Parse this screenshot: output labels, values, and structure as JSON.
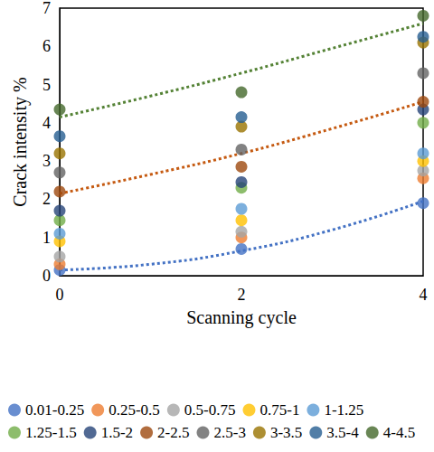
{
  "chart_data": {
    "type": "scatter",
    "x_label": "Scanning cycle",
    "y_label": "Crack intensity %",
    "x": [
      0,
      2,
      4
    ],
    "xlim": [
      0,
      4
    ],
    "xticks": [
      0,
      2,
      4
    ],
    "ylim": [
      0,
      7
    ],
    "yticks": [
      0,
      1,
      2,
      3,
      4,
      5,
      6,
      7
    ],
    "grid": false,
    "legend": "bottom",
    "marker": "circle",
    "series": [
      {
        "name": "0.01-0.25",
        "color": "#4472C4",
        "values": [
          0.15,
          0.7,
          1.9
        ]
      },
      {
        "name": "0.25-0.5",
        "color": "#ED7D31",
        "values": [
          0.3,
          1.0,
          2.55
        ]
      },
      {
        "name": "0.5-0.75",
        "color": "#A5A5A5",
        "values": [
          0.5,
          1.15,
          2.75
        ]
      },
      {
        "name": "0.75-1",
        "color": "#FFC000",
        "values": [
          0.9,
          1.45,
          3.0
        ]
      },
      {
        "name": "1-1.25",
        "color": "#5B9BD5",
        "values": [
          1.1,
          1.75,
          3.2
        ]
      },
      {
        "name": "1.25-1.5",
        "color": "#70AD47",
        "values": [
          1.45,
          2.3,
          4.0
        ]
      },
      {
        "name": "1.5-2",
        "color": "#264478",
        "values": [
          1.7,
          2.45,
          4.35
        ]
      },
      {
        "name": "2-2.5",
        "color": "#9E480E",
        "values": [
          2.2,
          2.85,
          4.55
        ]
      },
      {
        "name": "2.5-3",
        "color": "#636363",
        "values": [
          2.7,
          3.3,
          5.3
        ]
      },
      {
        "name": "3-3.5",
        "color": "#997300",
        "values": [
          3.2,
          3.9,
          6.1
        ]
      },
      {
        "name": "3.5-4",
        "color": "#255E91",
        "values": [
          3.65,
          4.15,
          6.25
        ]
      },
      {
        "name": "4-4.5",
        "color": "#43682B",
        "values": [
          4.35,
          4.8,
          6.8
        ]
      }
    ],
    "trendlines": [
      {
        "color": "#4472C4",
        "line_style": "dotted",
        "x": [
          0,
          1,
          2,
          3,
          4
        ],
        "values": [
          0.15,
          0.3,
          0.65,
          1.2,
          1.95
        ]
      },
      {
        "color": "#C55A11",
        "line_style": "dotted",
        "x": [
          0,
          1,
          2,
          3,
          4
        ],
        "values": [
          2.15,
          2.65,
          3.2,
          3.85,
          4.55
        ]
      },
      {
        "color": "#548235",
        "line_style": "dotted",
        "x": [
          0,
          1,
          2,
          3,
          4
        ],
        "values": [
          4.15,
          4.7,
          5.3,
          5.95,
          6.6
        ]
      }
    ]
  }
}
